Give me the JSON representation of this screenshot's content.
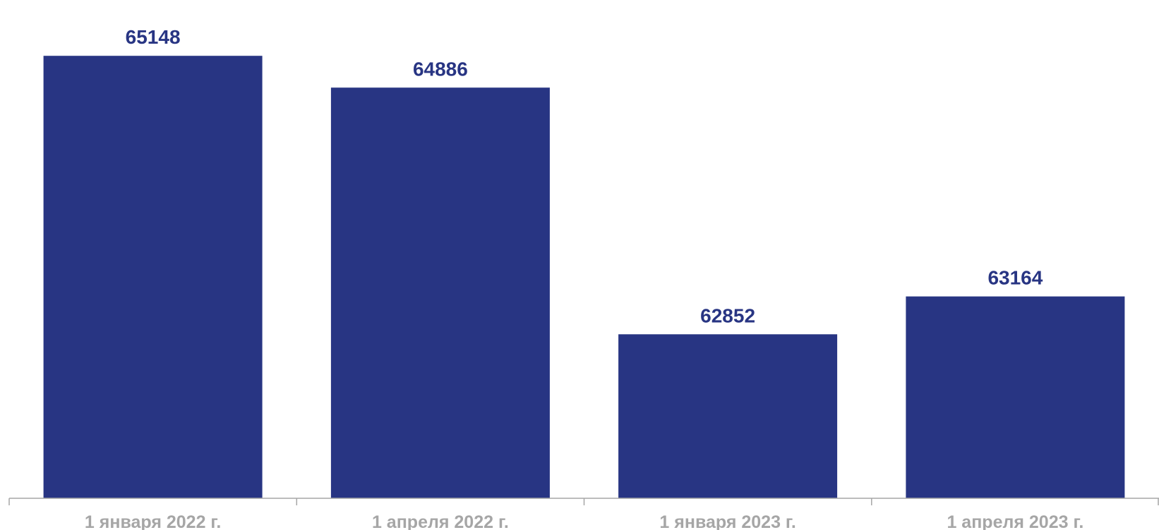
{
  "chart_data": {
    "type": "bar",
    "title": "",
    "xlabel": "",
    "ylabel": "",
    "categories": [
      "1 января 2022 г.",
      "1 апреля 2022 г.",
      "1 января 2023 г.",
      "1 апреля 2023 г."
    ],
    "values": [
      65148,
      64886,
      62852,
      63164
    ],
    "ylim": [
      61500,
      65300
    ],
    "grid": false,
    "legend": "none",
    "data_labels": [
      "65148",
      "64886",
      "62852",
      "63164"
    ]
  },
  "colors": {
    "bar": "#283583",
    "value_label": "#283583",
    "tick_label": "#a6a6a6",
    "axis": "#a6a6a6"
  }
}
